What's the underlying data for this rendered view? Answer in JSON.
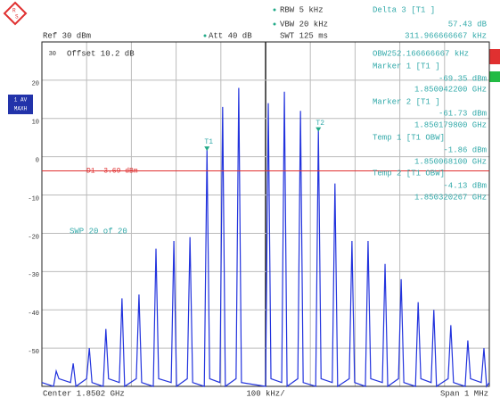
{
  "header": {
    "rbw": "RBW 5 kHz",
    "vbw": "VBW 20 kHz",
    "swt": "SWT 125 ms",
    "ref": "Ref 30 dBm",
    "att": "Att 40 dB",
    "delta_title": "Delta 3 [T1 ]",
    "delta_level": "57.43 dB",
    "delta_freq": "311.966666667 kHz"
  },
  "info": {
    "obw": "OBW252.166666667 kHz",
    "marker1_title": "Marker 1 [T1 ]",
    "marker1_level": "-69.35 dBm",
    "marker1_freq": "1.850042200 GHz",
    "marker2_title": "Marker 2 [T1 ]",
    "marker2_level": "-61.73 dBm",
    "marker2_freq": "1.850179800 GHz",
    "temp1_title": "Temp 1 [T1 OBW]",
    "temp1_level": "-1.86 dBm",
    "temp1_freq": "1.850068100 GHz",
    "temp2_title": "Temp 2 [T1 OBW]",
    "temp2_level": "-4.13 dBm",
    "temp2_freq": "1.850320267 GHz"
  },
  "side": {
    "trace": "1 AV",
    "mode": "MAXH"
  },
  "overlay": {
    "offset": "Offset 10.2 dB",
    "sweep": "SWP 20 of 20"
  },
  "footer": {
    "center": "Center 1.8502 GHz",
    "div": "100 kHz/",
    "span": "Span 1 MHz"
  },
  "chart_data": {
    "type": "line",
    "xlim": [
      -500,
      500
    ],
    "ylim": [
      -60,
      30
    ],
    "yticks": [
      30,
      20,
      10,
      0,
      -10,
      -20,
      -30,
      -40,
      -50
    ],
    "grid": true,
    "display_line": {
      "label": "D1 -3.69 dBm",
      "value": -3.69,
      "color": "#e03030"
    },
    "markers": [
      {
        "label": "T1",
        "x": -131,
        "y": 2
      },
      {
        "label": "T2",
        "x": 118,
        "y": 7
      }
    ],
    "series": [
      {
        "color": "#2233dd",
        "x": [
          -500,
          -474,
          -468,
          -462,
          -436,
          -430,
          -424,
          -400,
          -394,
          -388,
          -363,
          -357,
          -351,
          -327,
          -321,
          -315,
          -289,
          -283,
          -277,
          -251,
          -245,
          -239,
          -211,
          -205,
          -199,
          -175,
          -169,
          -163,
          -137,
          -131,
          -125,
          -102,
          -96,
          -90,
          -66,
          -60,
          -54,
          0,
          6,
          12,
          36,
          42,
          48,
          72,
          78,
          84,
          112,
          118,
          124,
          149,
          155,
          161,
          187,
          193,
          199,
          223,
          229,
          235,
          261,
          267,
          273,
          297,
          303,
          309,
          335,
          341,
          347,
          370,
          376,
          382,
          408,
          414,
          420,
          446,
          452,
          458,
          482,
          488,
          494,
          500
        ],
        "values": [
          -59,
          -60,
          -56,
          -58,
          -59,
          -54,
          -60,
          -58,
          -50,
          -59,
          -60,
          -45,
          -58,
          -59,
          -37,
          -60,
          -58,
          -36,
          -59,
          -60,
          -24,
          -58,
          -59,
          -22,
          -60,
          -58,
          -21,
          -59,
          -60,
          2,
          -58,
          -59,
          13,
          -60,
          -58,
          18,
          -59,
          -60,
          14,
          -58,
          -59,
          17,
          -60,
          -58,
          12,
          -59,
          -60,
          7,
          -58,
          -59,
          -7,
          -60,
          -58,
          -22,
          -59,
          -60,
          -22,
          -58,
          -59,
          -28,
          -60,
          -58,
          -32,
          -59,
          -60,
          -38,
          -58,
          -59,
          -40,
          -60,
          -58,
          -44,
          -59,
          -60,
          -48,
          -58,
          -59,
          -50,
          -60,
          -59
        ]
      }
    ]
  }
}
